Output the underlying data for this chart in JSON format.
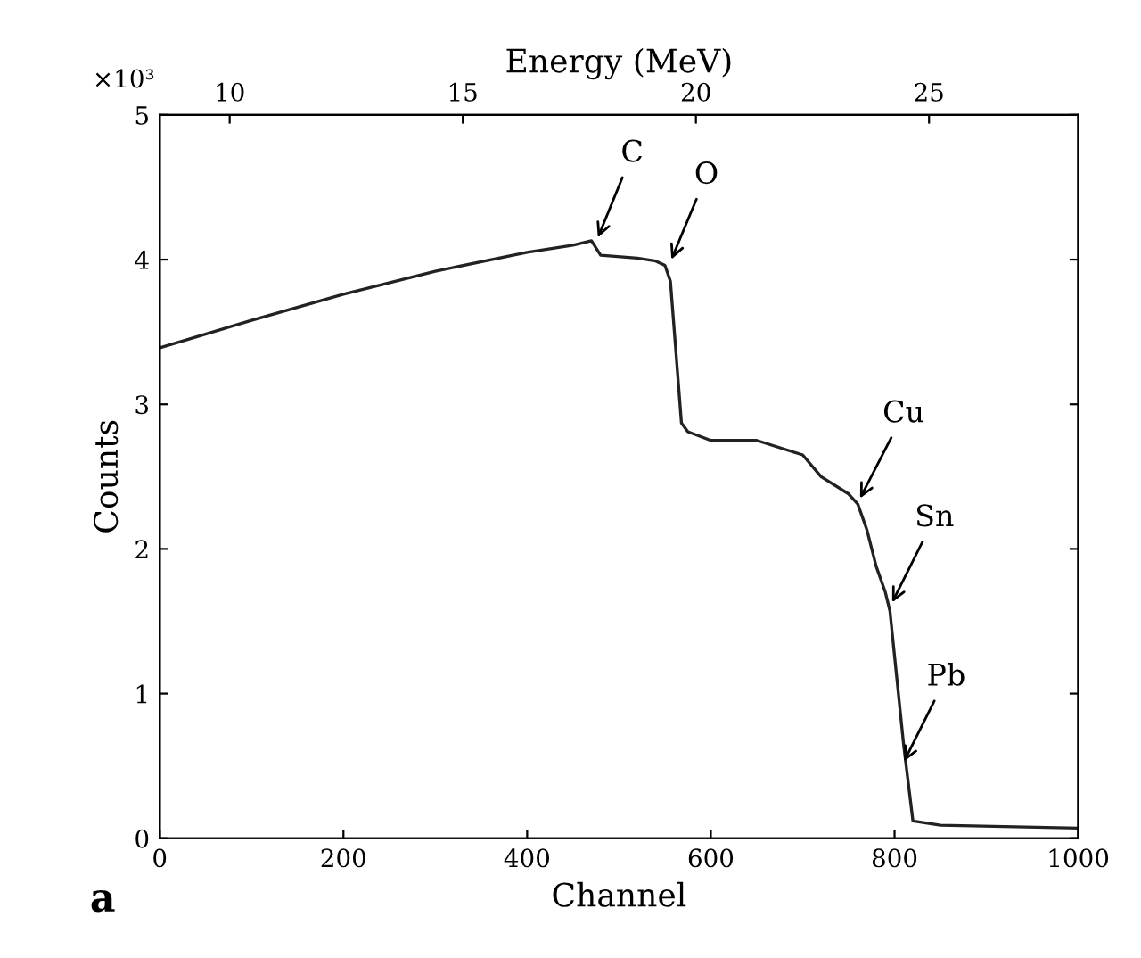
{
  "chart_data": {
    "type": "line",
    "xlabel": "Channel",
    "ylabel": "Counts",
    "x2label": "Energy (MeV)",
    "x": [
      0,
      100,
      200,
      300,
      400,
      450,
      470,
      480,
      520,
      540,
      550,
      556,
      568,
      575,
      600,
      650,
      700,
      720,
      750,
      760,
      770,
      780,
      790,
      795,
      800,
      810,
      820,
      850,
      1000
    ],
    "series": [
      {
        "color": "#222222",
        "values": [
          3.39,
          3.58,
          3.76,
          3.92,
          4.05,
          4.1,
          4.13,
          4.03,
          4.01,
          3.99,
          3.96,
          3.85,
          2.87,
          2.81,
          2.75,
          2.75,
          2.65,
          2.5,
          2.38,
          2.31,
          2.13,
          1.88,
          1.7,
          1.57,
          1.26,
          0.64,
          0.12,
          0.09,
          0.07
        ]
      }
    ],
    "xlim": [
      0,
      1000
    ],
    "xticks": [
      0,
      200,
      400,
      600,
      800,
      1000
    ],
    "ylim": [
      0,
      5
    ],
    "yticks": [
      0,
      1,
      2,
      3,
      4,
      5
    ],
    "x2lim": [
      8.5,
      28.2
    ],
    "x2ticks": [
      10,
      15,
      20,
      25
    ],
    "grid": false,
    "legend": false,
    "marker": "none",
    "line_style": "solid",
    "annotations": [
      {
        "text": "C",
        "x": 475,
        "y": 4.12
      },
      {
        "text": "O",
        "x": 555,
        "y": 3.97
      },
      {
        "text": "Cu",
        "x": 760,
        "y": 2.32
      },
      {
        "text": "Sn",
        "x": 795,
        "y": 1.6
      },
      {
        "text": "Pb",
        "x": 808,
        "y": 0.5
      },
      "a",
      "×10³"
    ]
  }
}
